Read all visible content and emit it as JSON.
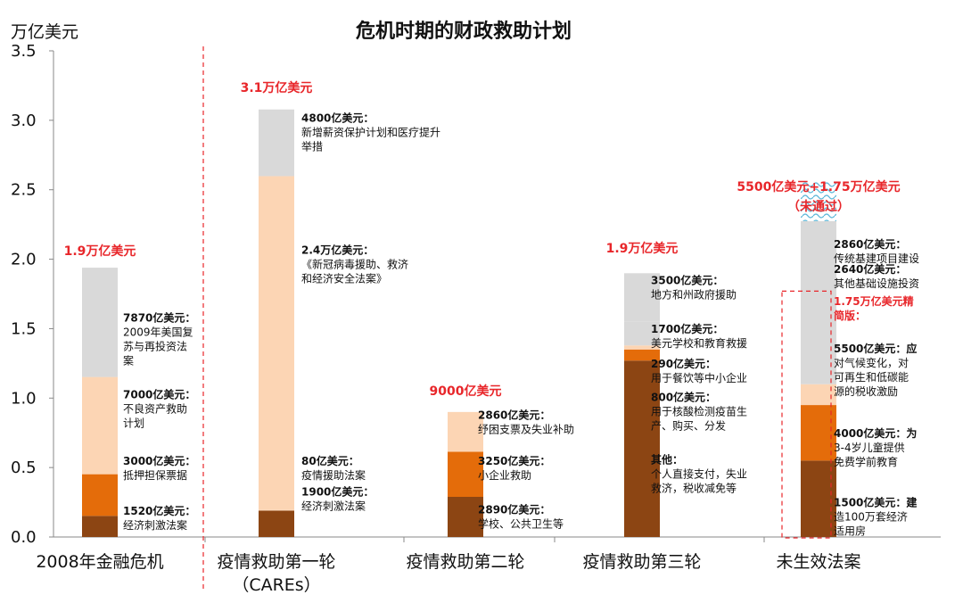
{
  "chart_data": {
    "type": "bar",
    "stacked": true,
    "title": "危机时期的财政救助计划",
    "ylabel": "万亿美元",
    "ylim": [
      0,
      3.5
    ],
    "yticks": [
      "0.0",
      "0.5",
      "1.0",
      "1.5",
      "2.0",
      "2.5",
      "3.0",
      "3.5"
    ],
    "grid": false,
    "colors": {
      "dark": "#8c4513",
      "orange": "#e46c0a",
      "peach": "#fcd5b4",
      "gray": "#d9d9d9",
      "hatch": "#8fd0e6",
      "red": "#e8262a"
    },
    "categories": [
      {
        "label": "2008年金融危机",
        "sub": "",
        "total_label": "1.9万亿美元",
        "total_label_2": ""
      },
      {
        "label": "疫情救助第一轮",
        "sub": "（CAREs）",
        "total_label": "3.1万亿美元",
        "total_label_2": ""
      },
      {
        "label": "疫情救助第二轮",
        "sub": "",
        "total_label": "9000亿美元",
        "total_label_2": ""
      },
      {
        "label": "疫情救助第三轮",
        "sub": "",
        "total_label": "1.9万亿美元",
        "total_label_2": ""
      },
      {
        "label": "未生效法案",
        "sub": "",
        "total_label": "5500亿美元+1.75万亿美元",
        "total_label_2": "（未通过）"
      }
    ],
    "stacks": [
      [
        {
          "value": 0.152,
          "color": "dark"
        },
        {
          "value": 0.3,
          "color": "orange"
        },
        {
          "value": 0.7,
          "color": "peach"
        },
        {
          "value": 0.787,
          "color": "gray"
        }
      ],
      [
        {
          "value": 0.19,
          "color": "dark"
        },
        {
          "value": 0.008,
          "color": "peach"
        },
        {
          "value": 2.4,
          "color": "peach"
        },
        {
          "value": 0.48,
          "color": "gray"
        }
      ],
      [
        {
          "value": 0.289,
          "color": "dark"
        },
        {
          "value": 0.325,
          "color": "orange"
        },
        {
          "value": 0.286,
          "color": "peach"
        }
      ],
      [
        {
          "value": 1.27,
          "color": "dark"
        },
        {
          "value": 0.08,
          "color": "orange"
        },
        {
          "value": 0.029,
          "color": "peach"
        },
        {
          "value": 0.17,
          "color": "gray"
        },
        {
          "value": 0.35,
          "color": "gray"
        }
      ],
      [
        {
          "value": 0.55,
          "color": "dark"
        },
        {
          "value": 0.4,
          "color": "orange"
        },
        {
          "value": 0.15,
          "color": "peach"
        },
        {
          "value": 0.91,
          "color": "gray"
        },
        {
          "value": 0.264,
          "color": "gray"
        },
        {
          "value": 0.286,
          "color": "hatch"
        }
      ]
    ],
    "annotations": [
      {
        "cat": 0,
        "value": 1.55,
        "lines": [
          {
            "t": "7870亿美元：",
            "s": "b"
          },
          {
            "t": "2009年美国复",
            "s": "n"
          },
          {
            "t": "苏与再投资法",
            "s": "n"
          },
          {
            "t": "案",
            "s": "n"
          }
        ]
      },
      {
        "cat": 0,
        "value": 1.0,
        "lines": [
          {
            "t": "7000亿美元：",
            "s": "b"
          },
          {
            "t": "不良资产救助",
            "s": "n"
          },
          {
            "t": "计划",
            "s": "n"
          }
        ]
      },
      {
        "cat": 0,
        "value": 0.52,
        "lines": [
          {
            "t": "3000亿美元：",
            "s": "b"
          },
          {
            "t": "抵押担保票据",
            "s": "n"
          }
        ]
      },
      {
        "cat": 0,
        "value": 0.16,
        "lines": [
          {
            "t": "1520亿美元：",
            "s": "b"
          },
          {
            "t": "经济刺激法案",
            "s": "n"
          }
        ]
      },
      {
        "cat": 1,
        "value": 2.99,
        "lines": [
          {
            "t": "4800亿美元：",
            "s": "b"
          },
          {
            "t": "新增薪资保护计划和医疗提升",
            "s": "n"
          },
          {
            "t": "举措",
            "s": "n"
          }
        ]
      },
      {
        "cat": 1,
        "value": 2.04,
        "lines": [
          {
            "t": "2.4万亿美元：",
            "s": "b"
          },
          {
            "t": "《新冠病毒援助、救济",
            "s": "n"
          },
          {
            "t": "和经济安全法案》",
            "s": "n"
          }
        ]
      },
      {
        "cat": 1,
        "value": 0.52,
        "lines": [
          {
            "t": "80亿美元：",
            "s": "b"
          },
          {
            "t": "疫情援助法案",
            "s": "n"
          }
        ]
      },
      {
        "cat": 1,
        "value": 0.3,
        "lines": [
          {
            "t": "1900亿美元：",
            "s": "b"
          },
          {
            "t": "经济刺激法案",
            "s": "n"
          }
        ]
      },
      {
        "cat": 2,
        "value": 0.85,
        "lines": [
          {
            "t": "2860亿美元：",
            "s": "b"
          },
          {
            "t": "纾困支票及失业补助",
            "s": "n"
          }
        ]
      },
      {
        "cat": 2,
        "value": 0.52,
        "lines": [
          {
            "t": "3250亿美元：",
            "s": "b"
          },
          {
            "t": "小企业救助",
            "s": "n"
          }
        ]
      },
      {
        "cat": 2,
        "value": 0.17,
        "lines": [
          {
            "t": "2890亿美元：",
            "s": "b"
          },
          {
            "t": "学校、公共卫生等",
            "s": "n"
          }
        ]
      },
      {
        "cat": 3,
        "value": 1.82,
        "lines": [
          {
            "t": "3500亿美元：",
            "s": "b"
          },
          {
            "t": "地方和州政府援助",
            "s": "n"
          }
        ]
      },
      {
        "cat": 3,
        "value": 1.47,
        "lines": [
          {
            "t": "1700亿美元：",
            "s": "b"
          },
          {
            "t": "美元学校和教育救援",
            "s": "n"
          }
        ]
      },
      {
        "cat": 3,
        "value": 1.22,
        "lines": [
          {
            "t": "290亿美元：",
            "s": "b"
          },
          {
            "t": "用于餐饮等中小企业",
            "s": "n"
          }
        ]
      },
      {
        "cat": 3,
        "value": 0.98,
        "lines": [
          {
            "t": "800亿美元：",
            "s": "b"
          },
          {
            "t": "用于核酸检测疫苗生",
            "s": "n"
          },
          {
            "t": "产、购买、分发",
            "s": "n"
          }
        ]
      },
      {
        "cat": 3,
        "value": 0.53,
        "lines": [
          {
            "t": "其他：",
            "s": "b"
          },
          {
            "t": "个人直接支付，失业",
            "s": "n"
          },
          {
            "t": "救济，税收减免等",
            "s": "n"
          }
        ]
      },
      {
        "cat": 4,
        "value": 2.08,
        "lines": [
          {
            "t": "2860亿美元：",
            "s": "b"
          },
          {
            "t": "传统基建项目建设",
            "s": "n"
          }
        ]
      },
      {
        "cat": 4,
        "value": 1.9,
        "lines": [
          {
            "t": "2640亿美元：",
            "s": "b"
          },
          {
            "t": "其他基础设施投资",
            "s": "n"
          }
        ]
      },
      {
        "cat": 4,
        "value": 1.67,
        "lines": [
          {
            "t": "1.75万亿美元精",
            "s": "r"
          },
          {
            "t": "简版：",
            "s": "r"
          }
        ]
      },
      {
        "cat": 4,
        "value": 1.33,
        "lines": [
          {
            "t": "5500亿美元：应",
            "s": "b"
          },
          {
            "t": "对气候变化，对",
            "s": "n"
          },
          {
            "t": "可再生和低碳能",
            "s": "n"
          },
          {
            "t": "源的税收激励",
            "s": "n"
          }
        ]
      },
      {
        "cat": 4,
        "value": 0.72,
        "lines": [
          {
            "t": "4000亿美元：为",
            "s": "b"
          },
          {
            "t": "3-4岁儿童提供",
            "s": "n"
          },
          {
            "t": "免费学前教育",
            "s": "n"
          }
        ]
      },
      {
        "cat": 4,
        "value": 0.22,
        "lines": [
          {
            "t": "1500亿美元：建",
            "s": "b"
          },
          {
            "t": "造100万套经济",
            "s": "n"
          },
          {
            "t": "适用房",
            "s": "n"
          }
        ]
      }
    ]
  }
}
